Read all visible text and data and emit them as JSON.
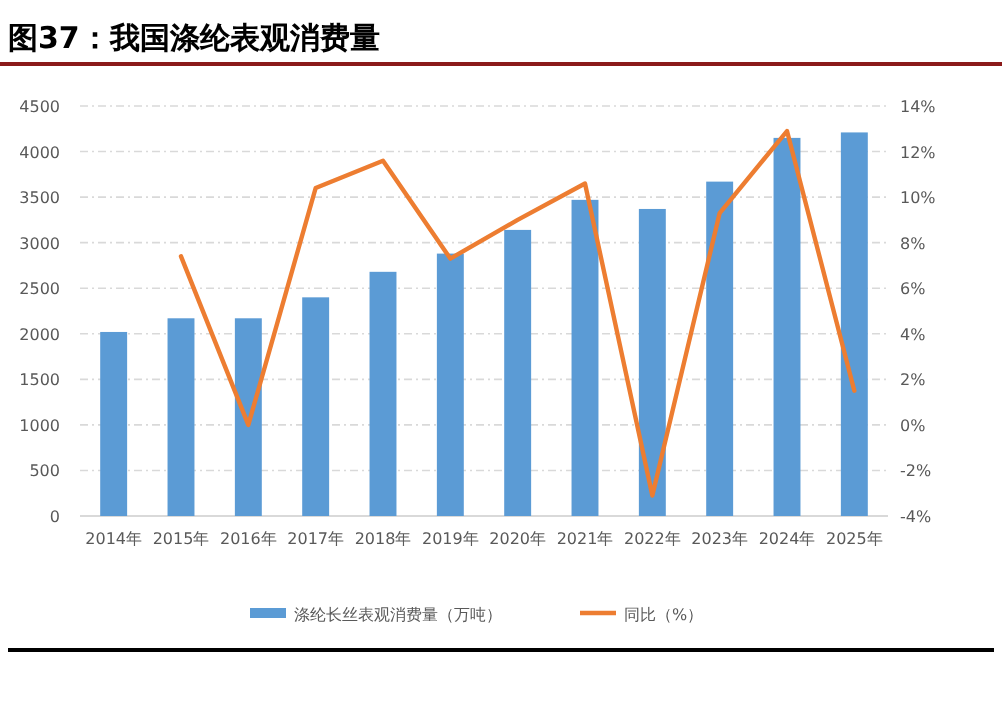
{
  "chart_data": {
    "type": "bar",
    "title": "图37：我国涤纶表观消费量",
    "categories": [
      "2014年",
      "2015年",
      "2016年",
      "2017年",
      "2018年",
      "2019年",
      "2020年",
      "2021年",
      "2022年",
      "2023年",
      "2024年",
      "2025年"
    ],
    "series": [
      {
        "name": "涤纶长丝表观消费量（万吨）",
        "color": "#5b9bd5",
        "values": [
          2020,
          2170,
          2170,
          2400,
          2680,
          2880,
          3140,
          3470,
          3370,
          3670,
          4150,
          4210
        ]
      },
      {
        "name": "同比（%）",
        "type": "line",
        "axis": "y2",
        "color": "#ed7d31",
        "values": [
          null,
          7.4,
          0.0,
          10.4,
          11.6,
          7.3,
          9.0,
          10.6,
          -3.1,
          9.3,
          12.9,
          1.5
        ]
      }
    ],
    "ylim": [
      0,
      4500
    ],
    "yticks": [
      0,
      500,
      1000,
      1500,
      2000,
      2500,
      3000,
      3500,
      4000,
      4500
    ],
    "y2lim": [
      -4,
      14
    ],
    "y2ticks": [
      {
        "value": -4,
        "label": "-4%"
      },
      {
        "value": -2,
        "label": "-2%"
      },
      {
        "value": 0,
        "label": "0%"
      },
      {
        "value": 2,
        "label": "2%"
      },
      {
        "value": 4,
        "label": "4%"
      },
      {
        "value": 6,
        "label": "6%"
      },
      {
        "value": 8,
        "label": "8%"
      },
      {
        "value": 10,
        "label": "10%"
      },
      {
        "value": 12,
        "label": "12%"
      },
      {
        "value": 14,
        "label": "14%"
      }
    ],
    "grid": "y",
    "legend": "bottom"
  }
}
